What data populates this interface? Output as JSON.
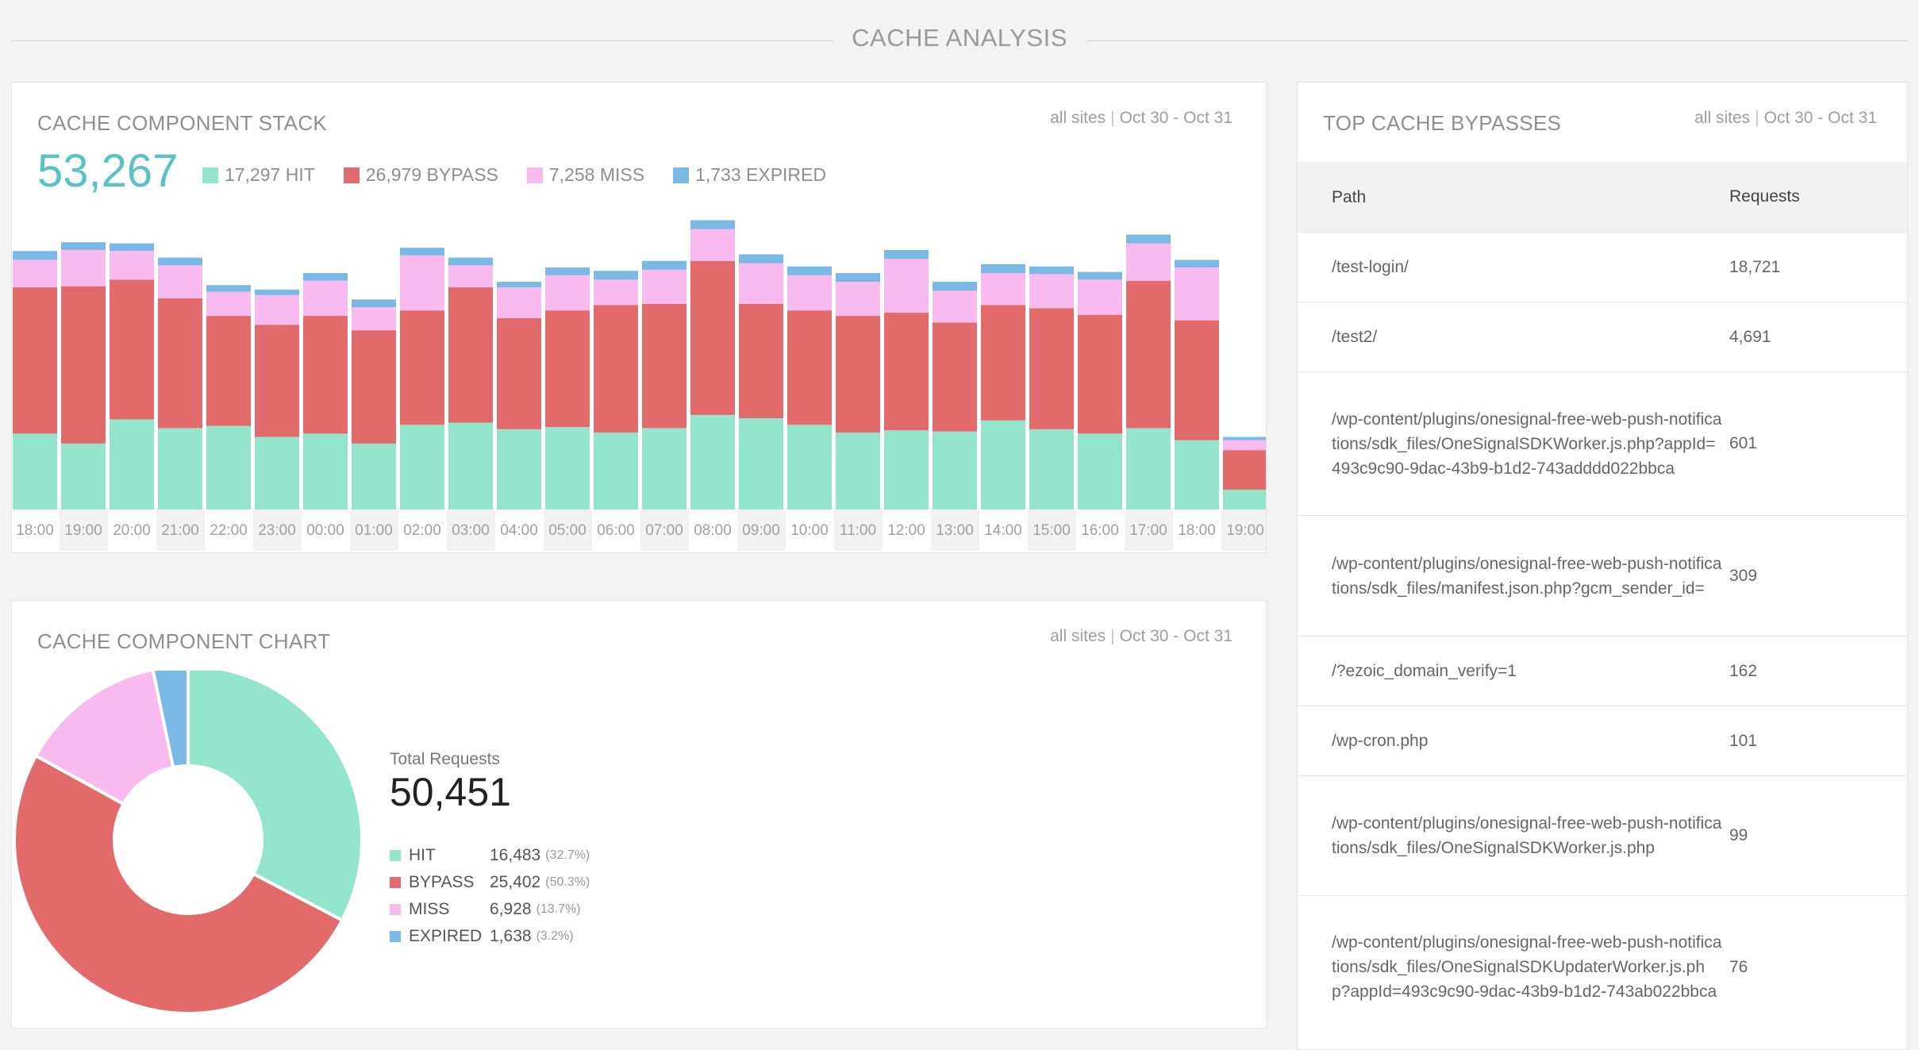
{
  "section": {
    "title": "CACHE ANALYSIS"
  },
  "stack": {
    "title": "CACHE COMPONENT STACK",
    "meta_scope": "all sites",
    "meta_range": "Oct 30 - Oct 31",
    "total": "53,267",
    "legend": [
      {
        "text": "17,297 HIT",
        "color": "#93e6cc"
      },
      {
        "text": "26,979 BYPASS",
        "color": "#e26a6a"
      },
      {
        "text": "7,258 MISS",
        "color": "#f9bbef"
      },
      {
        "text": "1,733 EXPIRED",
        "color": "#7ab8e6"
      }
    ]
  },
  "chart_data": [
    {
      "type": "bar",
      "stacked": true,
      "categories": [
        "18:00",
        "19:00",
        "20:00",
        "21:00",
        "22:00",
        "23:00",
        "00:00",
        "01:00",
        "02:00",
        "03:00",
        "04:00",
        "05:00",
        "06:00",
        "07:00",
        "08:00",
        "09:00",
        "10:00",
        "11:00",
        "12:00",
        "13:00",
        "14:00",
        "15:00",
        "16:00",
        "17:00",
        "18:00",
        "19:00"
      ],
      "series": [
        {
          "name": "HIT",
          "color": "#93e6cc",
          "values": [
            690,
            600,
            820,
            740,
            760,
            660,
            690,
            600,
            770,
            790,
            730,
            750,
            700,
            740,
            860,
            830,
            770,
            700,
            720,
            710,
            810,
            730,
            690,
            740,
            630,
            180
          ]
        },
        {
          "name": "BYPASS",
          "color": "#e26a6a",
          "values": [
            1330,
            1430,
            1270,
            1180,
            1000,
            1020,
            1070,
            1030,
            1040,
            1230,
            1010,
            1060,
            1160,
            1130,
            1400,
            1040,
            1040,
            1060,
            1070,
            990,
            1050,
            1100,
            1080,
            1340,
            1090,
            360
          ]
        },
        {
          "name": "MISS",
          "color": "#f9bbef",
          "values": [
            250,
            330,
            260,
            300,
            220,
            270,
            320,
            210,
            500,
            200,
            280,
            320,
            230,
            310,
            290,
            370,
            320,
            310,
            490,
            290,
            290,
            310,
            320,
            340,
            480,
            90
          ]
        },
        {
          "name": "EXPIRED",
          "color": "#7ab8e6",
          "values": [
            80,
            70,
            70,
            70,
            60,
            50,
            70,
            70,
            70,
            70,
            50,
            70,
            80,
            80,
            80,
            80,
            80,
            80,
            80,
            80,
            80,
            70,
            70,
            80,
            70,
            30
          ]
        }
      ],
      "xlabel": "",
      "ylabel": "",
      "grid": false,
      "legend": "top-left"
    },
    {
      "type": "pie",
      "donut": true,
      "categories": [
        "HIT",
        "BYPASS",
        "MISS",
        "EXPIRED"
      ],
      "values": [
        16483,
        25402,
        6928,
        1638
      ],
      "colors": [
        "#93e6cc",
        "#e26a6a",
        "#f9bbef",
        "#7ab8e6"
      ]
    }
  ],
  "pie": {
    "title": "CACHE COMPONENT CHART",
    "meta_scope": "all sites",
    "meta_range": "Oct 30 - Oct 31",
    "total_label": "Total Requests",
    "total": "50,451",
    "legend": [
      {
        "name": "HIT",
        "value": "16,483",
        "pct": "(32.7%)",
        "color": "#93e6cc"
      },
      {
        "name": "BYPASS",
        "value": "25,402",
        "pct": "(50.3%)",
        "color": "#e26a6a"
      },
      {
        "name": "MISS",
        "value": "6,928",
        "pct": "(13.7%)",
        "color": "#f9bbef"
      },
      {
        "name": "EXPIRED",
        "value": "1,638",
        "pct": "(3.2%)",
        "color": "#7ab8e6"
      }
    ]
  },
  "bypasses": {
    "title": "TOP CACHE BYPASSES",
    "meta_scope": "all sites",
    "meta_range": "Oct 30 - Oct 31",
    "columns": [
      "Path",
      "Requests"
    ],
    "rows": [
      {
        "path": "/test-login/",
        "requests": "18,721"
      },
      {
        "path": "/test2/",
        "requests": "4,691"
      },
      {
        "path": "/wp-content/plugins/onesignal-free-web-push-notifications/sdk_files/OneSignalSDKWorker.js.php?appId=493c9c90-9dac-43b9-b1d2-743adddd022bbca",
        "requests": "601"
      },
      {
        "path": "/wp-content/plugins/onesignal-free-web-push-notifications/sdk_files/manifest.json.php?gcm_sender_id=",
        "requests": "309"
      },
      {
        "path": "/?ezoic_domain_verify=1",
        "requests": "162"
      },
      {
        "path": "/wp-cron.php",
        "requests": "101"
      },
      {
        "path": "/wp-content/plugins/onesignal-free-web-push-notifications/sdk_files/OneSignalSDKWorker.js.php",
        "requests": "99"
      },
      {
        "path": "/wp-content/plugins/onesignal-free-web-push-notifications/sdk_files/OneSignalSDKUpdaterWorker.js.php?appId=493c9c90-9dac-43b9-b1d2-743ab022bbca",
        "requests": "76"
      }
    ]
  }
}
